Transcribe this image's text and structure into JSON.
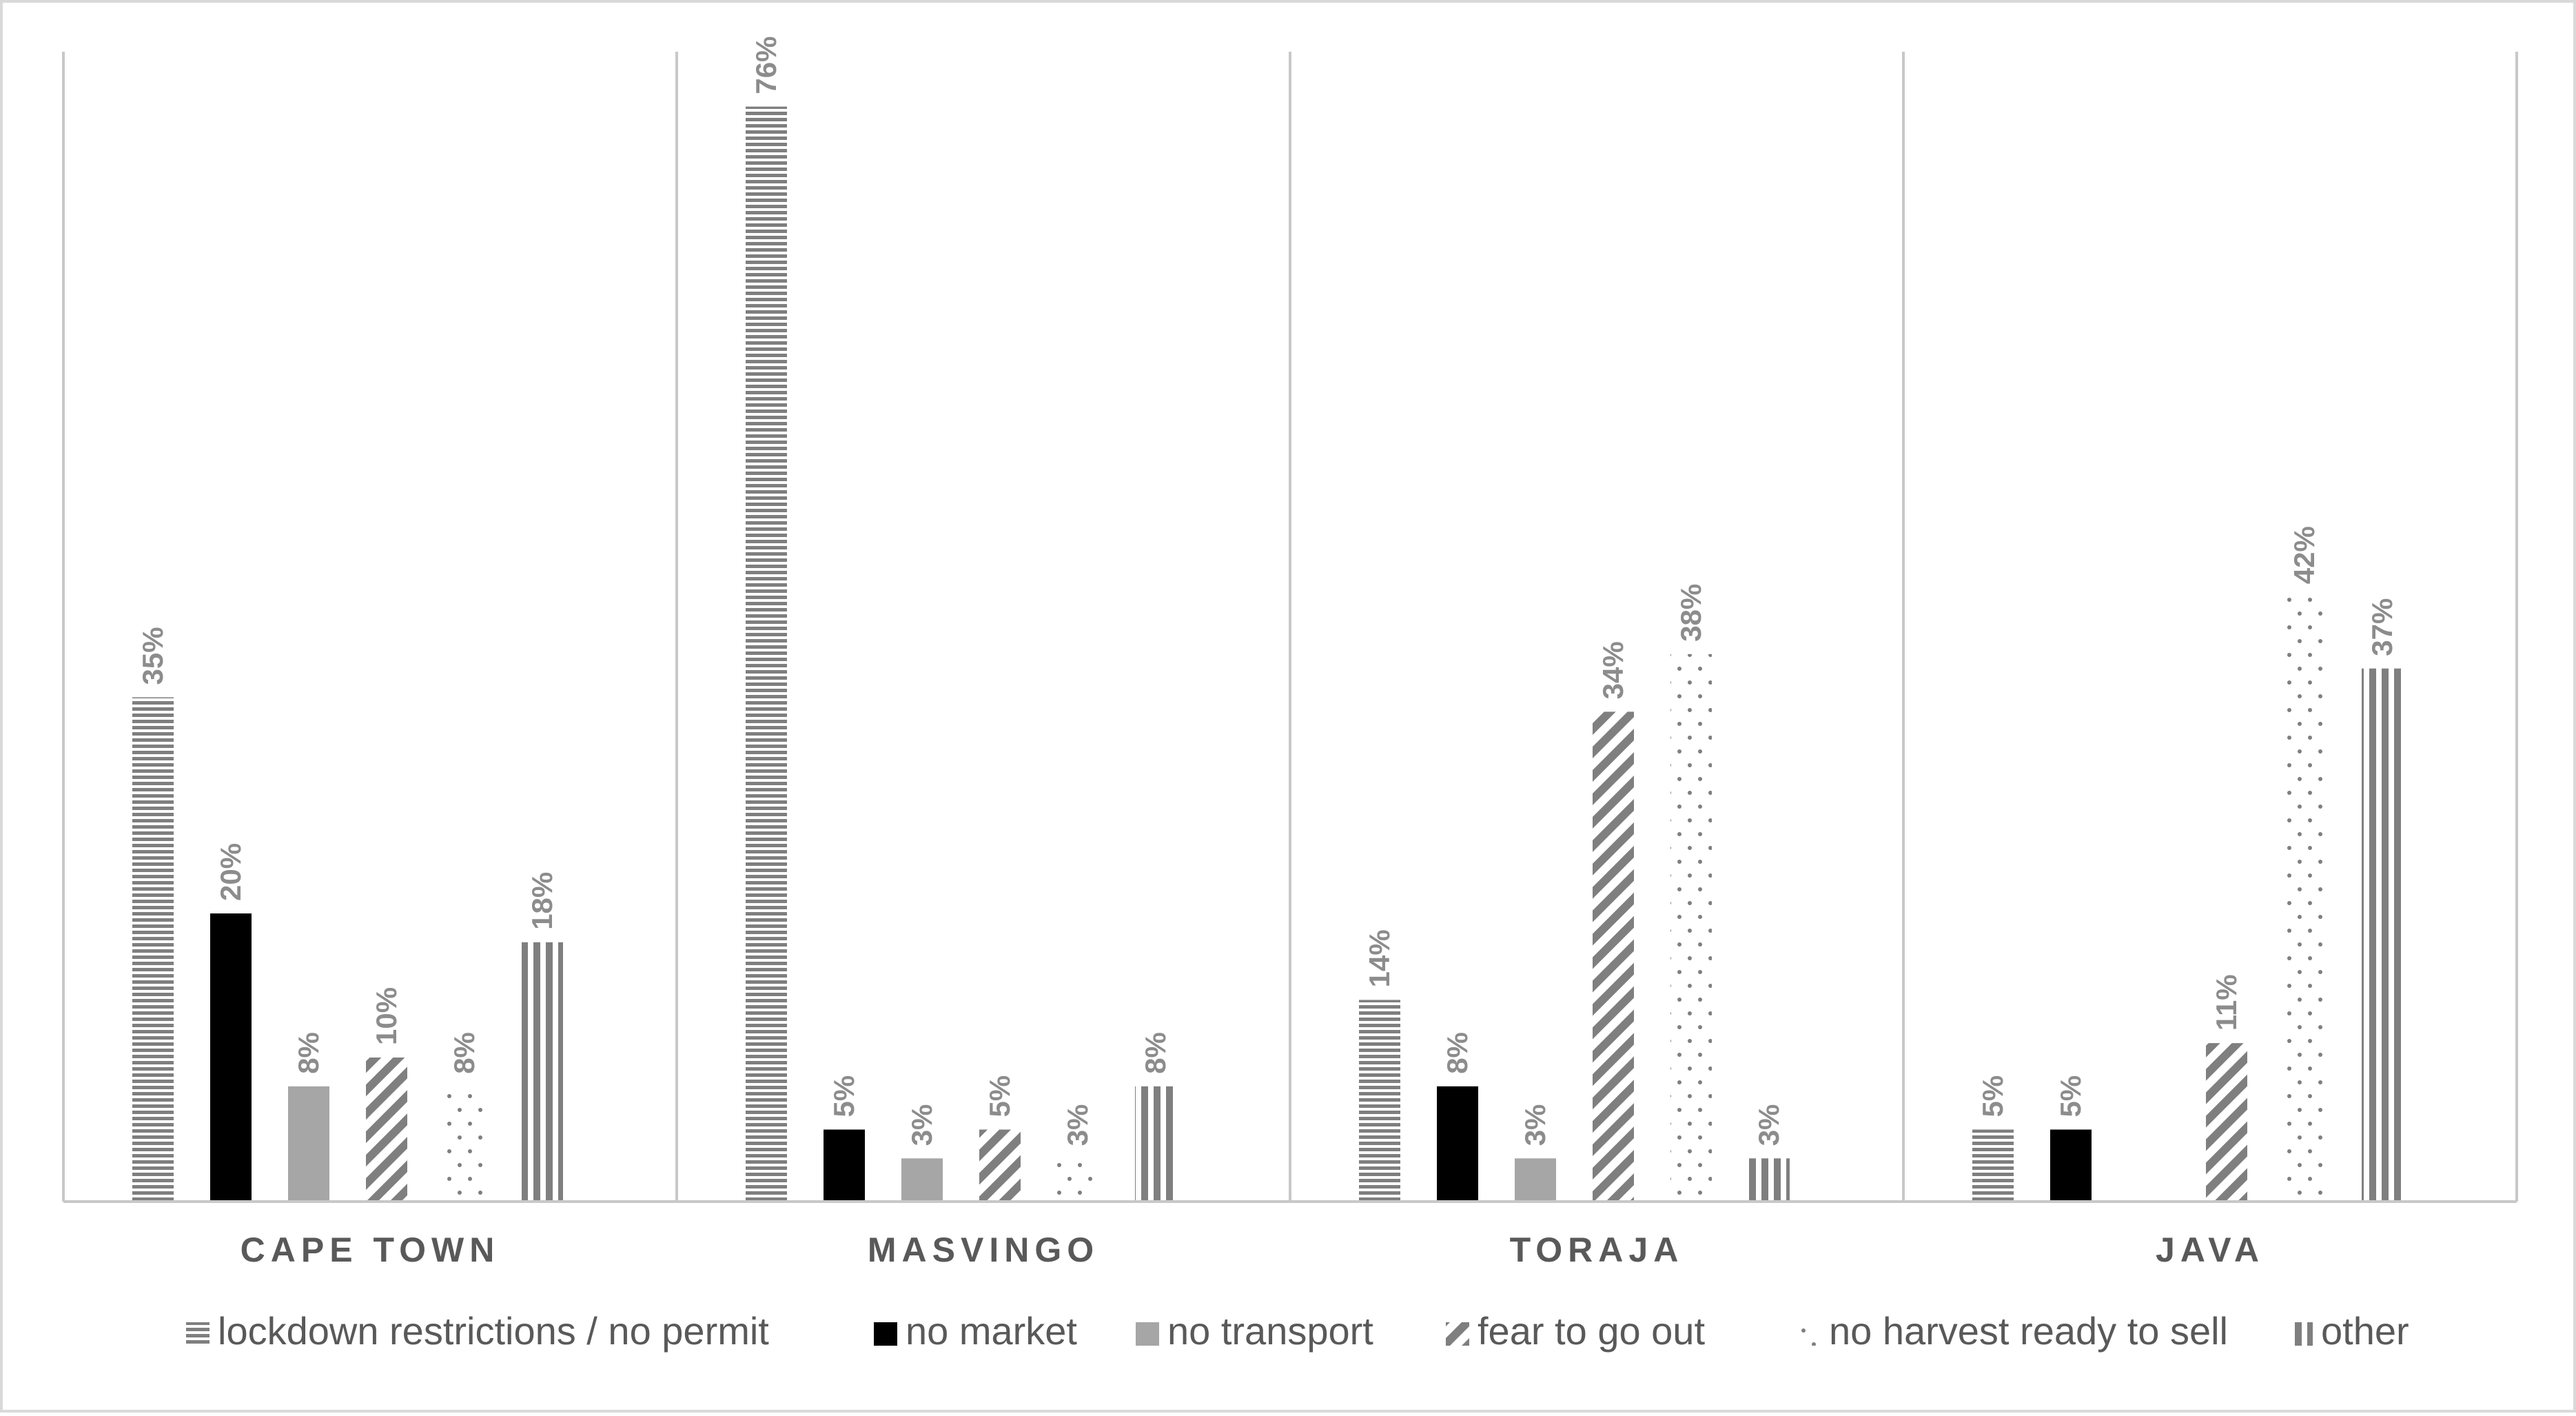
{
  "chart_data": {
    "type": "bar",
    "categories": [
      "CAPE TOWN",
      "MASVINGO",
      "TORAJA",
      "JAVA"
    ],
    "series": [
      {
        "name": "lockdown restrictions / no permit",
        "values": [
          35,
          76,
          14,
          5
        ],
        "labels": [
          "35%",
          "76%",
          "14%",
          "5%"
        ],
        "pattern": "horizontal-stripes"
      },
      {
        "name": "no market",
        "values": [
          20,
          5,
          8,
          5
        ],
        "labels": [
          "20%",
          "5%",
          "8%",
          "5%"
        ],
        "pattern": "solid-black"
      },
      {
        "name": "no transport",
        "values": [
          8,
          3,
          3,
          null
        ],
        "labels": [
          "8%",
          "3%",
          "3%",
          ""
        ],
        "pattern": "solid-gray"
      },
      {
        "name": "fear to go out",
        "values": [
          10,
          5,
          34,
          11
        ],
        "labels": [
          "10%",
          "5%",
          "34%",
          "11%"
        ],
        "pattern": "diagonal-stripes"
      },
      {
        "name": "no harvest ready to sell",
        "values": [
          8,
          3,
          38,
          42
        ],
        "labels": [
          "8%",
          "3%",
          "38%",
          "42%"
        ],
        "pattern": "dots"
      },
      {
        "name": "other",
        "values": [
          18,
          8,
          3,
          37
        ],
        "labels": [
          "18%",
          "8%",
          "3%",
          "37%"
        ],
        "pattern": "vertical-stripes"
      }
    ],
    "ylim": [
      0,
      80
    ],
    "grid": false,
    "legend_position": "bottom",
    "colors": {
      "label": "#8c8c8c",
      "category": "#595959",
      "legend_text": "#595959",
      "axis": "#c8c8c8",
      "black": "#000000",
      "gray": "#a6a6a6",
      "pattern": "#7f7f7f"
    }
  }
}
